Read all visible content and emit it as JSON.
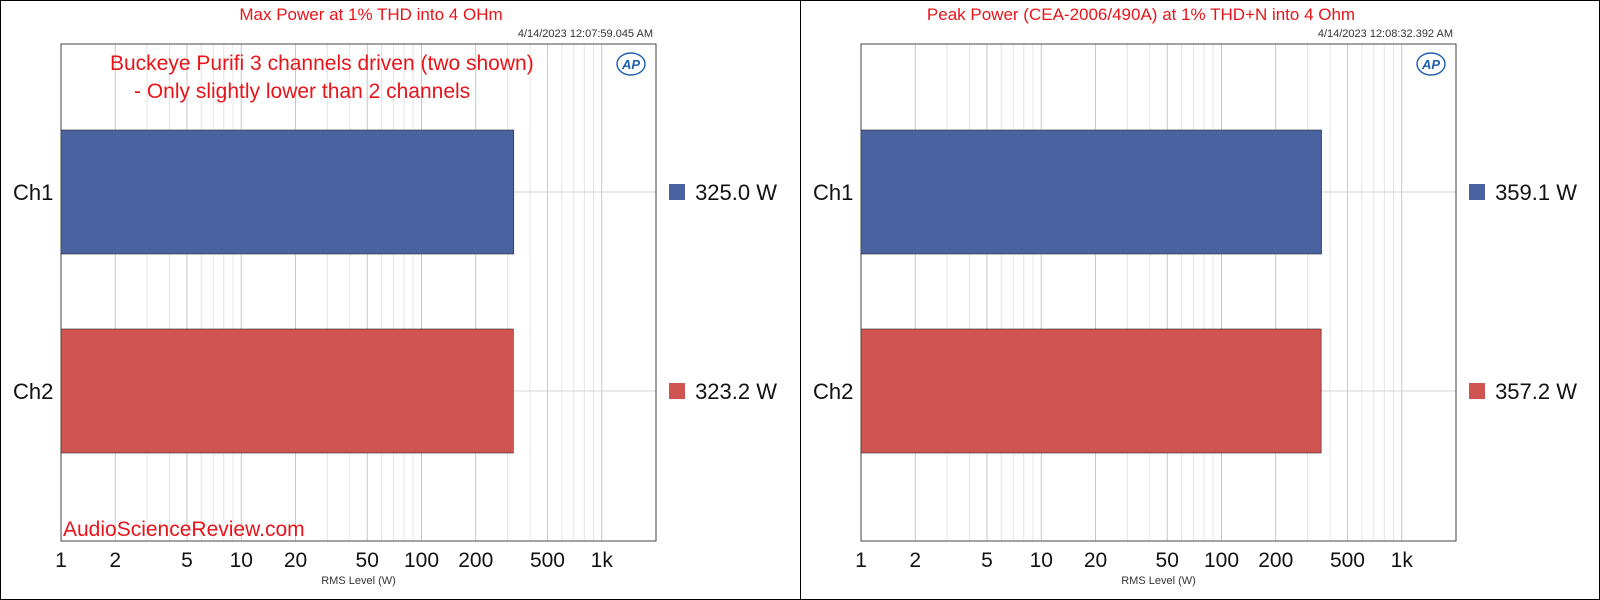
{
  "watermark": "AudioScienceReview.com",
  "colors": {
    "ch1": "#4a63a0",
    "ch2": "#d0544f",
    "title": "#e8141a",
    "logo": "#1f5fae"
  },
  "logo": {
    "text": "AP"
  },
  "chart_data": [
    {
      "type": "bar",
      "orientation": "horizontal",
      "title": "Max Power at 1% THD into 4 OHm",
      "timestamp": "4/14/2023 12:07:59.045 AM",
      "annotation": [
        "Buckeye Purifi 3 channels driven (two shown)",
        "- Only slightly lower than 2 channels"
      ],
      "categories": [
        "Ch1",
        "Ch2"
      ],
      "values": [
        325.0,
        323.2
      ],
      "value_labels": [
        "325.0 W",
        "323.2 W"
      ],
      "xlabel": "RMS Level (W)",
      "xscale": "log",
      "xlim": [
        1,
        2000
      ],
      "xticks": [
        1,
        2,
        5,
        10,
        20,
        50,
        100,
        200,
        500,
        1000
      ],
      "xtick_labels": [
        "1",
        "2",
        "5",
        "10",
        "20",
        "50",
        "100",
        "200",
        "500",
        "1k"
      ],
      "grid": true,
      "legend_placement": "right"
    },
    {
      "type": "bar",
      "orientation": "horizontal",
      "title": "Peak Power (CEA-2006/490A) at 1% THD+N into 4 Ohm",
      "timestamp": "4/14/2023 12:08:32.392 AM",
      "categories": [
        "Ch1",
        "Ch2"
      ],
      "values": [
        359.1,
        357.2
      ],
      "value_labels": [
        "359.1 W",
        "357.2 W"
      ],
      "xlabel": "RMS Level (W)",
      "xscale": "log",
      "xlim": [
        1,
        2000
      ],
      "xticks": [
        1,
        2,
        5,
        10,
        20,
        50,
        100,
        200,
        500,
        1000
      ],
      "xtick_labels": [
        "1",
        "2",
        "5",
        "10",
        "20",
        "50",
        "100",
        "200",
        "500",
        "1k"
      ],
      "grid": true,
      "legend_placement": "right"
    }
  ]
}
